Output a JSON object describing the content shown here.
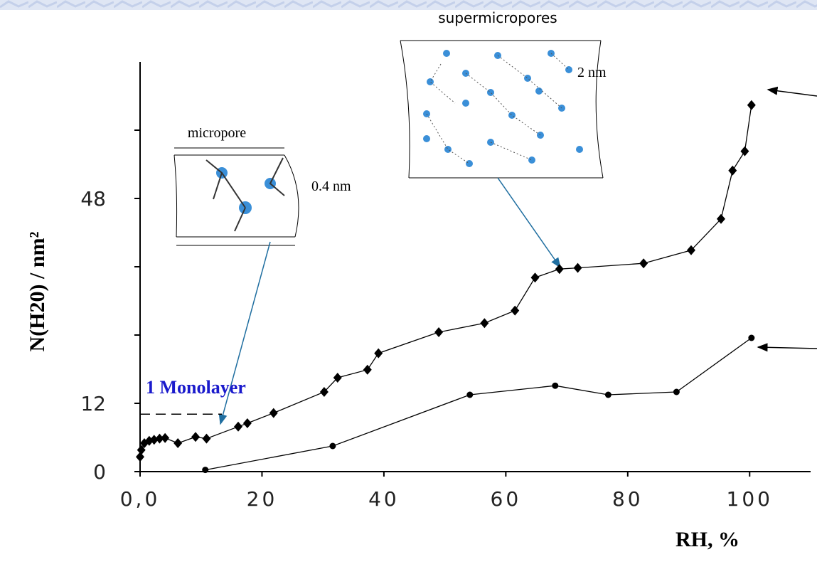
{
  "chart_data": {
    "type": "line",
    "y_label": "N(H20) / nm²",
    "x_label": "RH, %",
    "annotations": {
      "supermicropores": "supermicropores",
      "micropore": "micropore",
      "micropore_size": "0.4 nm",
      "supermicropore_size": "2 nm",
      "monolayer": "1 Monolayer"
    },
    "monolayer_level": 10.1,
    "xlim": [
      0,
      110
    ],
    "ylim": [
      0,
      72
    ],
    "xticks": [
      {
        "value": 0,
        "label": "0,0"
      },
      20,
      40,
      60,
      80,
      100
    ],
    "yticks": [
      0,
      12,
      48
    ],
    "yminor_ticks": [
      24,
      36,
      60
    ],
    "series": [
      {
        "marker": "diamond",
        "color": "#000000",
        "x": [
          0,
          0.2,
          0.7,
          1.5,
          2.3,
          3.2,
          4.1,
          6.2,
          9.1,
          10.9,
          16.1,
          17.6,
          21.9,
          30.2,
          32.4,
          37.3,
          39.1,
          49,
          56.5,
          61.5,
          64.8,
          68.8,
          71.8,
          82.6,
          90.4,
          95.3,
          97.2,
          99.2,
          100.3
        ],
        "values": [
          2.6,
          3.8,
          5,
          5.4,
          5.6,
          5.8,
          5.9,
          5,
          6.1,
          5.8,
          7.9,
          8.5,
          10.3,
          14,
          16.5,
          17.9,
          20.8,
          24.5,
          26.1,
          28.3,
          34.1,
          35.6,
          35.8,
          36.6,
          38.9,
          44.4,
          52.9,
          56.3,
          64.4
        ]
      },
      {
        "marker": "circle",
        "color": "#000000",
        "x": [
          10.7,
          31.6,
          54.1,
          68.1,
          76.8,
          88,
          100.3
        ],
        "values": [
          0.3,
          4.5,
          13.5,
          15.1,
          13.5,
          14,
          23.5
        ]
      }
    ]
  }
}
